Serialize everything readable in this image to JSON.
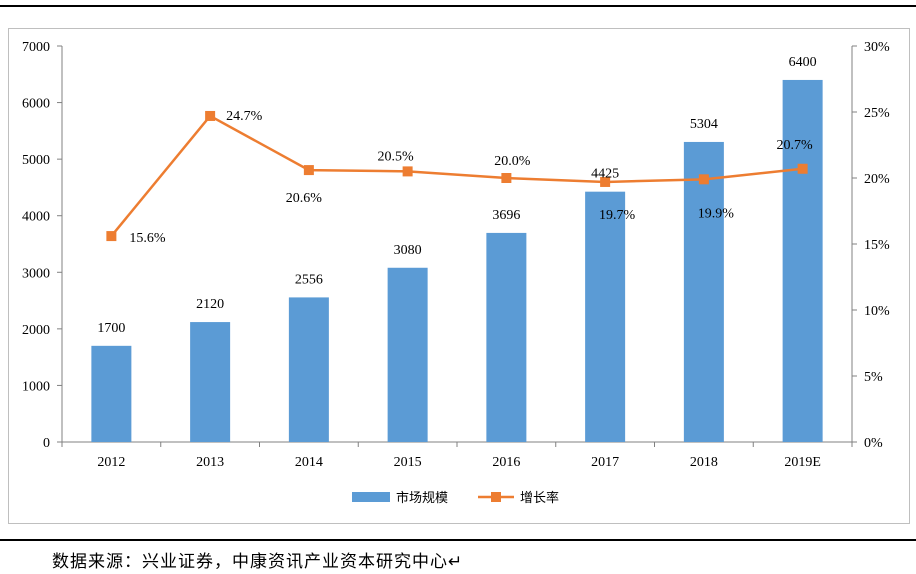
{
  "chart_data": {
    "type": "bar",
    "categories": [
      "2012",
      "2013",
      "2014",
      "2015",
      "2016",
      "2017",
      "2018",
      "2019E"
    ],
    "series": [
      {
        "name": "市场规模",
        "type": "bar",
        "axis": "left",
        "values": [
          1700,
          2120,
          2556,
          3080,
          3696,
          4425,
          5304,
          6400
        ],
        "labels": [
          "1700",
          "2120",
          "2556",
          "3080",
          "3696",
          "4425",
          "5304",
          "6400"
        ]
      },
      {
        "name": "增长率",
        "type": "line",
        "axis": "right",
        "values": [
          15.6,
          24.7,
          20.6,
          20.5,
          20.0,
          19.7,
          19.9,
          20.7
        ],
        "labels": [
          "15.6%",
          "24.7%",
          "20.6%",
          "20.5%",
          "20.0%",
          "19.7%",
          "19.9%",
          "20.7%"
        ]
      }
    ],
    "ylim_left": [
      0,
      7000
    ],
    "yticks_left": [
      "0",
      "1000",
      "2000",
      "3000",
      "4000",
      "5000",
      "6000",
      "7000"
    ],
    "ylim_right": [
      0,
      30
    ],
    "yticks_right": [
      "0%",
      "5%",
      "10%",
      "15%",
      "20%",
      "25%",
      "30%"
    ],
    "legend_position": "bottom",
    "grid": false,
    "colors": {
      "bar": "#5b9bd5",
      "line": "#ed7d31"
    }
  },
  "source_note": "数据来源：兴业证券，中康资讯产业资本研究中心↵"
}
